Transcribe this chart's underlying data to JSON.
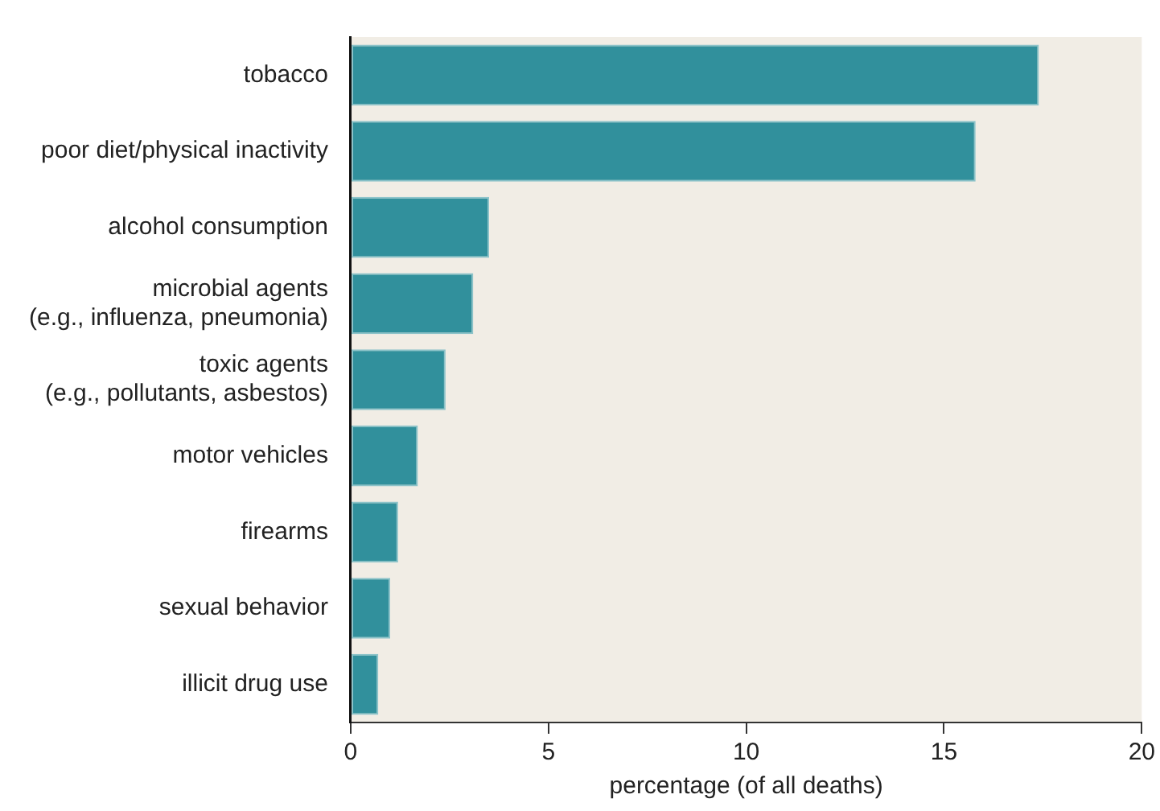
{
  "chart_data": {
    "type": "bar",
    "orientation": "horizontal",
    "categories": [
      "tobacco",
      "poor diet/physical inactivity",
      "alcohol consumption",
      "microbial agents\n(e.g., influenza, pneumonia)",
      "toxic agents\n(e.g., pollutants, asbestos)",
      "motor vehicles",
      "firearms",
      "sexual behavior",
      "illicit drug use"
    ],
    "values": [
      17.4,
      15.8,
      3.5,
      3.1,
      2.4,
      1.7,
      1.2,
      1.0,
      0.7
    ],
    "color": "#31909c",
    "xlim": [
      0,
      20
    ],
    "xticks": [
      0,
      5,
      10,
      15,
      20
    ],
    "xlabel": "percentage (of all deaths)",
    "grid": false,
    "legend": false
  }
}
